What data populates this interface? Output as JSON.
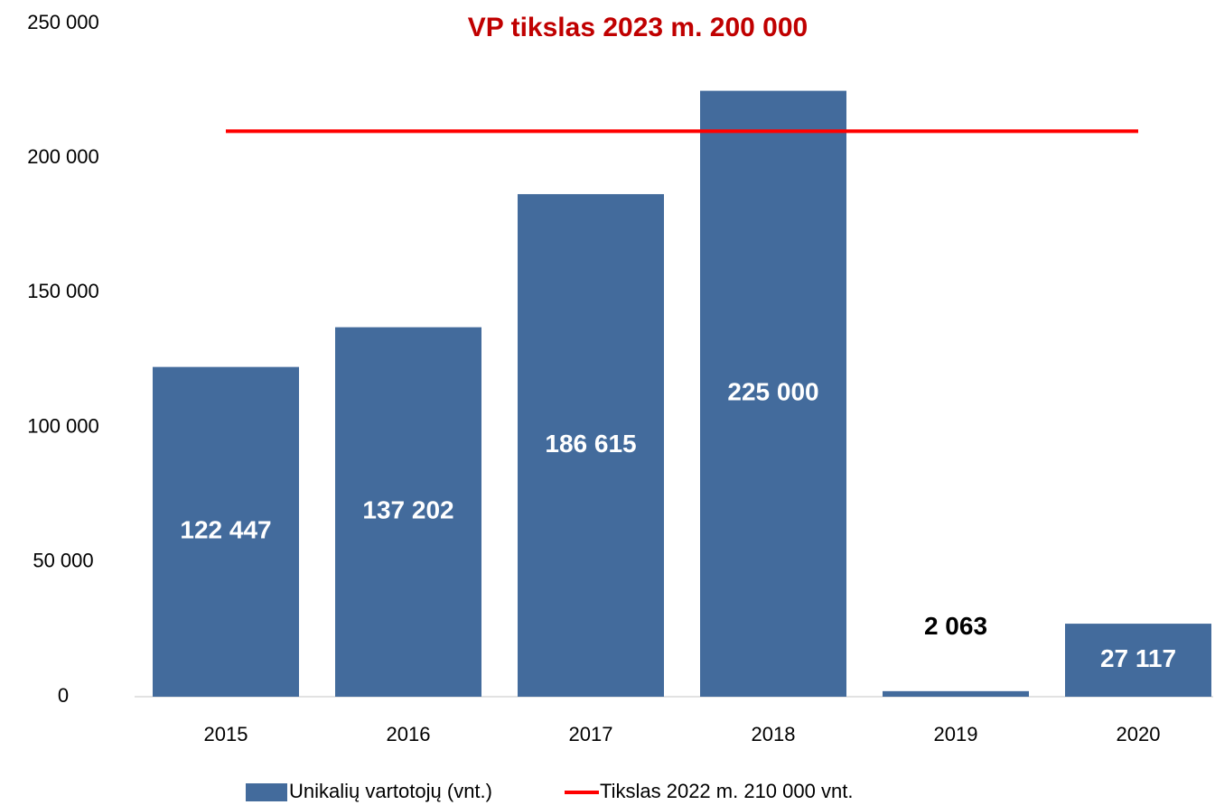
{
  "chart_data": {
    "type": "bar",
    "title": "VP tikslas 2023 m. 200 000",
    "categories": [
      "2015",
      "2016",
      "2017",
      "2018",
      "2019",
      "2020"
    ],
    "series": [
      {
        "name": "Unikalių vartotojų (vnt.)",
        "color": "#436b9c",
        "type": "bar",
        "values": [
          122447,
          137202,
          186615,
          225000,
          2063,
          27117
        ],
        "value_labels": [
          "122 447",
          "137 202",
          "186 615",
          "225 000",
          "2 063",
          "27 117"
        ]
      },
      {
        "name": "Tikslas 2022 m. 210 000 vnt.",
        "color": "#ff0000",
        "type": "line",
        "values": [
          210000,
          210000,
          210000,
          210000,
          210000,
          210000
        ]
      }
    ],
    "ylim": [
      0,
      250000
    ],
    "yticks": [
      0,
      {
        "value": 50000,
        "label": "50 000"
      },
      {
        "value": 100000,
        "label": "100 000"
      },
      {
        "value": 150000,
        "label": "150 000"
      },
      {
        "value": 200000,
        "label": "200 000"
      },
      {
        "value": 250000,
        "label": "250 000"
      }
    ],
    "grid": false,
    "legend": "bottom"
  }
}
